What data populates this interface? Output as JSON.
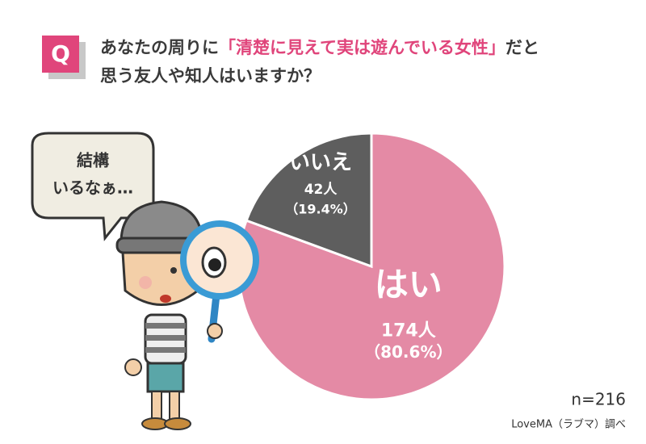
{
  "badge": "Q",
  "title": [
    "あなたの周りに",
    "「清楚に見えて実は遊んでいる女性」",
    "だと",
    "思う友人や知人はいますか？"
  ],
  "bubble": [
    "結構",
    "いるなぁ…"
  ],
  "chart_data": {
    "type": "pie",
    "categories": [
      "はい",
      "いいえ"
    ],
    "values": [
      80.6,
      19.4
    ],
    "value_labels": [
      "（80.6%）",
      "（19.4%）"
    ],
    "count_labels": [
      "174人",
      "42人"
    ],
    "colors": [
      "#e48aa5",
      "#5e5e5e"
    ]
  },
  "note": "n=216",
  "source": "LoveMA（ラブマ）調べ"
}
